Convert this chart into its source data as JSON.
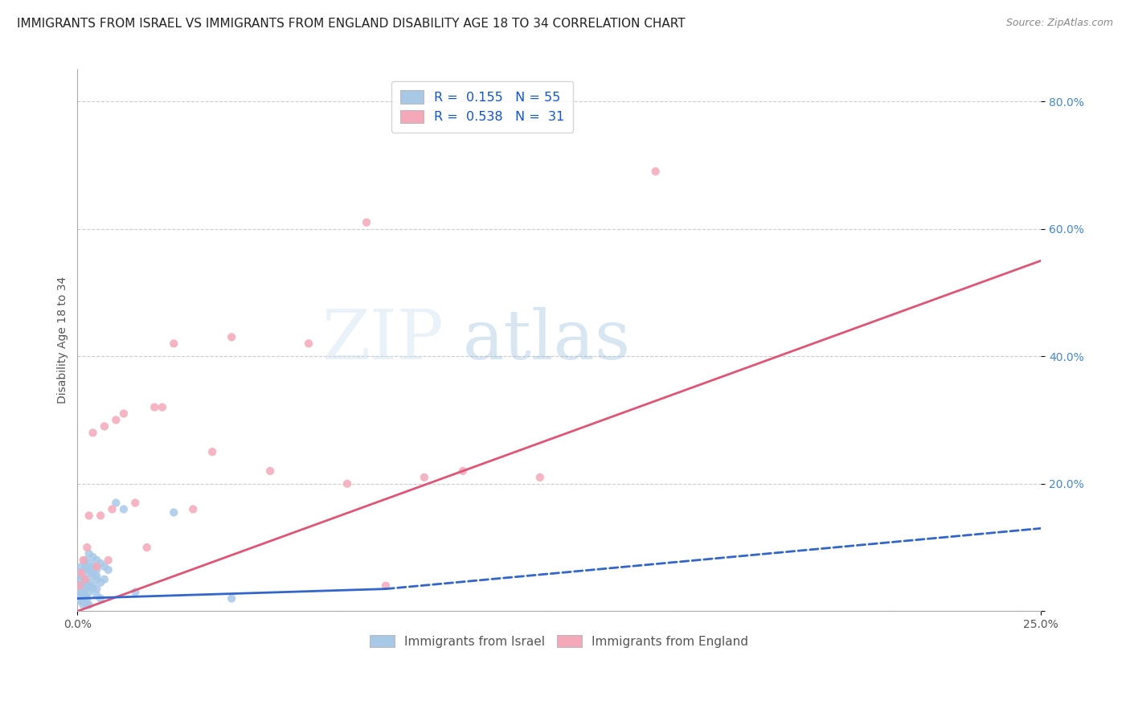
{
  "title": "IMMIGRANTS FROM ISRAEL VS IMMIGRANTS FROM ENGLAND DISABILITY AGE 18 TO 34 CORRELATION CHART",
  "source": "Source: ZipAtlas.com",
  "ylabel": "Disability Age 18 to 34",
  "legend_label_1": "R =  0.155   N = 55",
  "legend_label_2": "R =  0.538   N =  31",
  "series1_name": "Immigrants from Israel",
  "series2_name": "Immigrants from England",
  "series1_color": "#a8c8e8",
  "series2_color": "#f4a8b8",
  "trendline1_color": "#3366cc",
  "trendline2_color": "#e05575",
  "watermark_zip": "ZIP",
  "watermark_atlas": "atlas",
  "israel_x": [
    0.0005,
    0.001,
    0.0015,
    0.0005,
    0.001,
    0.0015,
    0.002,
    0.0025,
    0.003,
    0.0005,
    0.001,
    0.0015,
    0.002,
    0.0025,
    0.001,
    0.002,
    0.003,
    0.004,
    0.0005,
    0.001,
    0.002,
    0.003,
    0.004,
    0.005,
    0.001,
    0.002,
    0.003,
    0.004,
    0.005,
    0.006,
    0.001,
    0.002,
    0.003,
    0.005,
    0.006,
    0.002,
    0.003,
    0.004,
    0.005,
    0.007,
    0.002,
    0.003,
    0.004,
    0.005,
    0.003,
    0.004,
    0.005,
    0.006,
    0.007,
    0.008,
    0.01,
    0.012,
    0.015,
    0.025,
    0.04
  ],
  "israel_y": [
    0.02,
    0.015,
    0.01,
    0.03,
    0.025,
    0.02,
    0.015,
    0.01,
    0.01,
    0.04,
    0.035,
    0.03,
    0.025,
    0.02,
    0.05,
    0.045,
    0.04,
    0.035,
    0.06,
    0.055,
    0.05,
    0.045,
    0.04,
    0.035,
    0.07,
    0.065,
    0.06,
    0.055,
    0.05,
    0.045,
    0.04,
    0.035,
    0.03,
    0.025,
    0.02,
    0.07,
    0.065,
    0.06,
    0.055,
    0.05,
    0.08,
    0.075,
    0.07,
    0.065,
    0.09,
    0.085,
    0.08,
    0.075,
    0.07,
    0.065,
    0.17,
    0.16,
    0.03,
    0.155,
    0.02
  ],
  "england_x": [
    0.0005,
    0.001,
    0.0015,
    0.002,
    0.0025,
    0.003,
    0.004,
    0.005,
    0.006,
    0.007,
    0.008,
    0.009,
    0.01,
    0.012,
    0.015,
    0.018,
    0.02,
    0.022,
    0.025,
    0.03,
    0.035,
    0.04,
    0.05,
    0.06,
    0.07,
    0.075,
    0.08,
    0.09,
    0.1,
    0.12,
    0.15
  ],
  "england_y": [
    0.04,
    0.06,
    0.08,
    0.05,
    0.1,
    0.15,
    0.28,
    0.07,
    0.15,
    0.29,
    0.08,
    0.16,
    0.3,
    0.31,
    0.17,
    0.1,
    0.32,
    0.32,
    0.42,
    0.16,
    0.25,
    0.43,
    0.22,
    0.42,
    0.2,
    0.61,
    0.04,
    0.21,
    0.22,
    0.21,
    0.69
  ],
  "trendline1_x0": 0.0,
  "trendline1_y0": 0.02,
  "trendline1_x1": 0.08,
  "trendline1_y1": 0.035,
  "trendline1_x1_dash": 0.08,
  "trendline1_y1_dash": 0.035,
  "trendline1_x2": 0.25,
  "trendline1_y2": 0.13,
  "trendline2_x0": 0.0,
  "trendline2_y0": 0.0,
  "trendline2_x1": 0.25,
  "trendline2_y1": 0.55,
  "xmin": 0.0,
  "xmax": 0.25,
  "ymin": 0.0,
  "ymax": 0.85,
  "yticks": [
    0.0,
    0.2,
    0.4,
    0.6,
    0.8
  ],
  "ytick_labels": [
    "",
    "20.0%",
    "40.0%",
    "60.0%",
    "80.0%"
  ],
  "grid_color": "#cccccc",
  "background_color": "#ffffff",
  "title_fontsize": 11,
  "axis_label_fontsize": 10
}
